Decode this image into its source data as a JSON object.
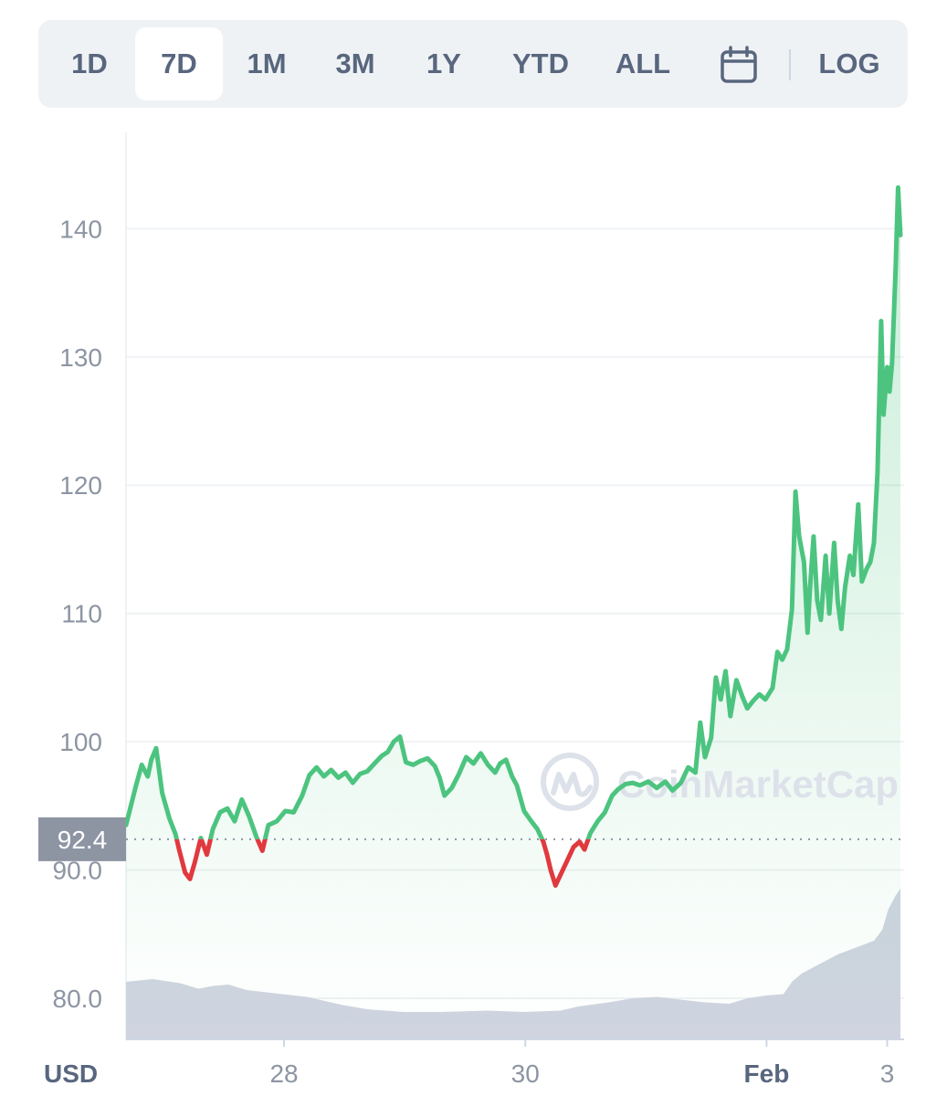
{
  "toolbar": {
    "ranges": [
      "1D",
      "7D",
      "1M",
      "3M",
      "1Y",
      "YTD",
      "ALL"
    ],
    "active_range": "7D",
    "calendar_icon": "calendar-icon",
    "log_label": "LOG"
  },
  "watermark": "CoinMarketCap",
  "colors": {
    "up": "#4cc47f",
    "down": "#e0393e",
    "volume": "#cfd4e0",
    "grid": "#eff2f5",
    "tag": "#8d95a3"
  },
  "chart_data": {
    "type": "line",
    "title": "",
    "currency_label": "USD",
    "ylim": [
      76.8,
      147.5
    ],
    "yticks": [
      {
        "value": 80,
        "label": "80.0"
      },
      {
        "value": 90,
        "label": "90.0"
      },
      {
        "value": 100,
        "label": "100"
      },
      {
        "value": 110,
        "label": "110"
      },
      {
        "value": 120,
        "label": "120"
      },
      {
        "value": 130,
        "label": "130"
      },
      {
        "value": 140,
        "label": "140"
      }
    ],
    "xlim": [
      0,
      7
    ],
    "xticks": [
      {
        "t": 1.31,
        "label": "28",
        "bold": false
      },
      {
        "t": 3.31,
        "label": "30",
        "bold": false
      },
      {
        "t": 5.31,
        "label": "Feb",
        "bold": true
      },
      {
        "t": 6.31,
        "label": "3",
        "bold": false
      }
    ],
    "reference_price": 92.4,
    "reference_label": "92.4",
    "grid": true,
    "series": [
      {
        "points": [
          [
            0,
            93.5
          ],
          [
            0.08,
            96.5
          ],
          [
            0.13,
            98.2
          ],
          [
            0.18,
            97.3
          ],
          [
            0.21,
            98.6
          ],
          [
            0.25,
            99.5
          ],
          [
            0.3,
            96
          ],
          [
            0.36,
            94
          ],
          [
            0.41,
            92.8
          ],
          [
            0.44,
            91.6
          ],
          [
            0.49,
            89.8
          ],
          [
            0.53,
            89.3
          ],
          [
            0.57,
            90.6
          ],
          [
            0.62,
            92.5
          ],
          [
            0.67,
            91.2
          ],
          [
            0.72,
            93.2
          ],
          [
            0.78,
            94.5
          ],
          [
            0.84,
            94.8
          ],
          [
            0.9,
            93.8
          ],
          [
            0.96,
            95.5
          ],
          [
            1.02,
            94.2
          ],
          [
            1.08,
            92.6
          ],
          [
            1.13,
            91.5
          ],
          [
            1.18,
            93.5
          ],
          [
            1.25,
            93.8
          ],
          [
            1.32,
            94.6
          ],
          [
            1.39,
            94.5
          ],
          [
            1.46,
            95.8
          ],
          [
            1.52,
            97.4
          ],
          [
            1.58,
            98
          ],
          [
            1.64,
            97.3
          ],
          [
            1.7,
            97.8
          ],
          [
            1.76,
            97.2
          ],
          [
            1.82,
            97.6
          ],
          [
            1.88,
            96.8
          ],
          [
            1.94,
            97.5
          ],
          [
            2.0,
            97.7
          ],
          [
            2.06,
            98.3
          ],
          [
            2.12,
            98.9
          ],
          [
            2.17,
            99.2
          ],
          [
            2.22,
            100
          ],
          [
            2.27,
            100.4
          ],
          [
            2.32,
            98.4
          ],
          [
            2.38,
            98.2
          ],
          [
            2.44,
            98.5
          ],
          [
            2.5,
            98.7
          ],
          [
            2.56,
            98.1
          ],
          [
            2.6,
            97.2
          ],
          [
            2.64,
            95.8
          ],
          [
            2.7,
            96.4
          ],
          [
            2.76,
            97.5
          ],
          [
            2.82,
            98.8
          ],
          [
            2.88,
            98.3
          ],
          [
            2.94,
            99.1
          ],
          [
            3.0,
            98.2
          ],
          [
            3.06,
            97.6
          ],
          [
            3.1,
            98.3
          ],
          [
            3.15,
            98.6
          ],
          [
            3.2,
            97.3
          ],
          [
            3.24,
            96.6
          ],
          [
            3.3,
            94.6
          ],
          [
            3.36,
            93.8
          ],
          [
            3.41,
            93.2
          ],
          [
            3.46,
            92.2
          ],
          [
            3.49,
            91.2
          ],
          [
            3.52,
            90
          ],
          [
            3.56,
            88.8
          ],
          [
            3.61,
            89.8
          ],
          [
            3.66,
            90.8
          ],
          [
            3.71,
            91.8
          ],
          [
            3.76,
            92.2
          ],
          [
            3.8,
            91.6
          ],
          [
            3.85,
            92.9
          ],
          [
            3.91,
            93.8
          ],
          [
            3.97,
            94.5
          ],
          [
            4.03,
            95.8
          ],
          [
            4.08,
            96.3
          ],
          [
            4.14,
            96.7
          ],
          [
            4.2,
            96.8
          ],
          [
            4.26,
            96.6
          ],
          [
            4.33,
            96.9
          ],
          [
            4.4,
            96.4
          ],
          [
            4.47,
            96.9
          ],
          [
            4.53,
            96.2
          ],
          [
            4.6,
            96.8
          ],
          [
            4.66,
            98
          ],
          [
            4.72,
            97.6
          ],
          [
            4.76,
            101.5
          ],
          [
            4.8,
            98.8
          ],
          [
            4.85,
            100.3
          ],
          [
            4.89,
            105
          ],
          [
            4.93,
            103.3
          ],
          [
            4.97,
            105.5
          ],
          [
            5.01,
            102
          ],
          [
            5.06,
            104.8
          ],
          [
            5.11,
            103.5
          ],
          [
            5.15,
            102.6
          ],
          [
            5.2,
            103.2
          ],
          [
            5.25,
            103.7
          ],
          [
            5.3,
            103.3
          ],
          [
            5.36,
            104.2
          ],
          [
            5.4,
            107
          ],
          [
            5.44,
            106.4
          ],
          [
            5.48,
            107.2
          ],
          [
            5.52,
            110.3
          ],
          [
            5.55,
            119.5
          ],
          [
            5.58,
            116
          ],
          [
            5.62,
            114
          ],
          [
            5.65,
            108.5
          ],
          [
            5.67,
            112
          ],
          [
            5.7,
            116
          ],
          [
            5.73,
            111
          ],
          [
            5.76,
            109.5
          ],
          [
            5.8,
            114.5
          ],
          [
            5.83,
            110
          ],
          [
            5.87,
            115.5
          ],
          [
            5.9,
            111
          ],
          [
            5.93,
            108.8
          ],
          [
            5.96,
            112
          ],
          [
            6.0,
            114.5
          ],
          [
            6.03,
            113
          ],
          [
            6.07,
            118.5
          ],
          [
            6.1,
            112.5
          ],
          [
            6.14,
            113.5
          ],
          [
            6.17,
            114
          ],
          [
            6.2,
            115.5
          ],
          [
            6.23,
            121
          ],
          [
            6.26,
            132.8
          ],
          [
            6.28,
            125.5
          ],
          [
            6.31,
            129.2
          ],
          [
            6.33,
            127.3
          ],
          [
            6.35,
            129.5
          ],
          [
            6.38,
            137
          ],
          [
            6.4,
            143.2
          ],
          [
            6.42,
            139.5
          ]
        ]
      }
    ],
    "volume": [
      [
        0,
        0.42
      ],
      [
        0.22,
        0.44
      ],
      [
        0.45,
        0.41
      ],
      [
        0.6,
        0.37
      ],
      [
        0.72,
        0.39
      ],
      [
        0.85,
        0.4
      ],
      [
        1.0,
        0.36
      ],
      [
        1.2,
        0.34
      ],
      [
        1.5,
        0.31
      ],
      [
        1.8,
        0.25
      ],
      [
        2.0,
        0.22
      ],
      [
        2.3,
        0.2
      ],
      [
        2.6,
        0.2
      ],
      [
        3.0,
        0.21
      ],
      [
        3.3,
        0.2
      ],
      [
        3.6,
        0.21
      ],
      [
        3.75,
        0.24
      ],
      [
        4.0,
        0.27
      ],
      [
        4.2,
        0.3
      ],
      [
        4.4,
        0.31
      ],
      [
        4.6,
        0.29
      ],
      [
        4.8,
        0.27
      ],
      [
        5.0,
        0.26
      ],
      [
        5.15,
        0.3
      ],
      [
        5.3,
        0.32
      ],
      [
        5.45,
        0.33
      ],
      [
        5.52,
        0.42
      ],
      [
        5.6,
        0.48
      ],
      [
        5.75,
        0.55
      ],
      [
        5.9,
        0.62
      ],
      [
        6.05,
        0.67
      ],
      [
        6.2,
        0.72
      ],
      [
        6.27,
        0.8
      ],
      [
        6.32,
        0.95
      ],
      [
        6.38,
        1.05
      ],
      [
        6.42,
        1.1
      ]
    ]
  }
}
